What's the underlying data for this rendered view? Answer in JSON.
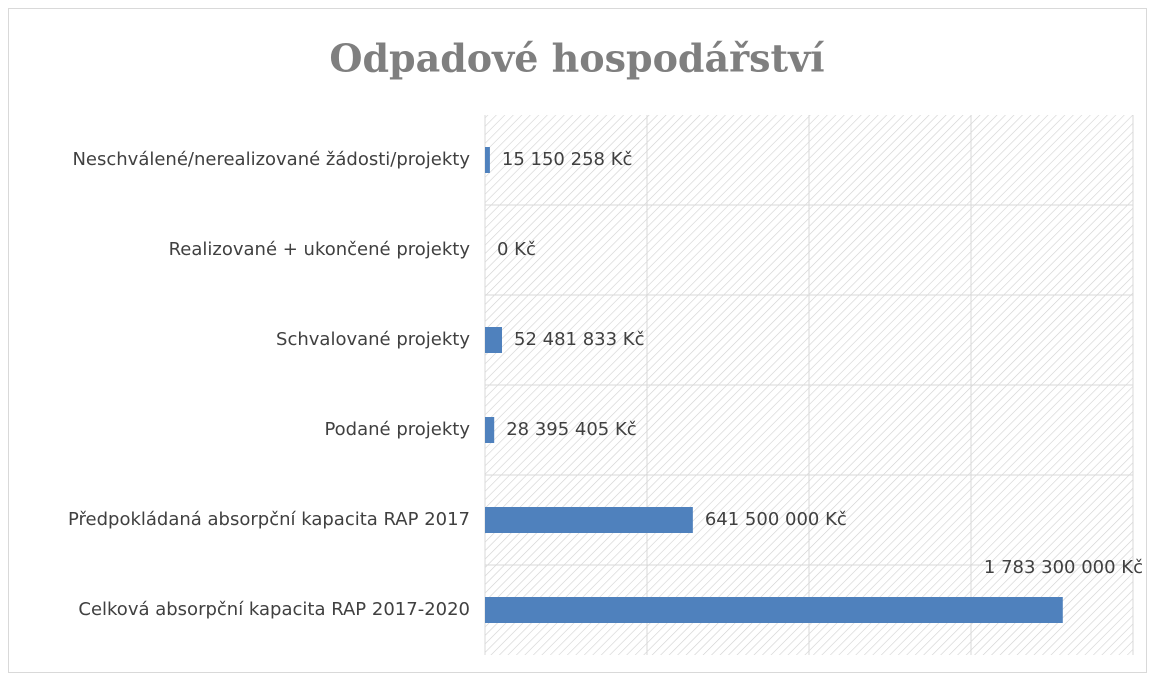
{
  "chart_data": {
    "type": "bar",
    "orientation": "horizontal",
    "title": "Odpadové hospodářství",
    "categories": [
      "Neschválené/nerealizované žádosti/projekty",
      "Realizované + ukončené projekty",
      "Schvalované projekty",
      "Podané projekty",
      "Předpokládaná absorpční kapacita RAP 2017",
      "Celková absorpční kapacita RAP 2017-2020"
    ],
    "values": [
      15150258,
      0,
      52481833,
      28395405,
      641500000,
      1783300000
    ],
    "value_labels": [
      "15 150 258 Kč",
      "0 Kč",
      "52 481 833 Kč",
      "28 395 405 Kč",
      "641 500 000 Kč",
      "1 783 300 000 Kč"
    ],
    "color": "#4f81bd",
    "xlim": [
      0,
      2000000000
    ],
    "xticks": [
      0,
      500000000,
      1000000000,
      1500000000,
      2000000000
    ],
    "grid": true
  }
}
